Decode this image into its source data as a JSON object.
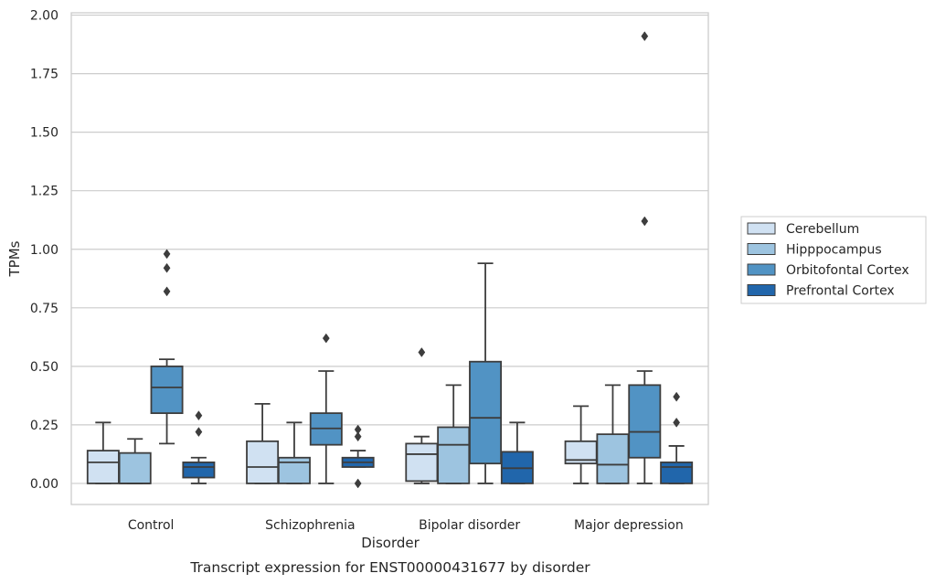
{
  "chart_data": {
    "type": "box",
    "xlabel": "Disorder",
    "ylabel": "TPMs",
    "caption": "Transcript expression for ENST00000431677 by disorder",
    "ylim": [
      -0.09,
      2.01
    ],
    "yticks": [
      "0.00",
      "0.25",
      "0.50",
      "0.75",
      "1.00",
      "1.25",
      "1.50",
      "1.75",
      "2.00"
    ],
    "grid": "horizontal",
    "legend_position": "right",
    "categories": [
      "Control",
      "Schizophrenia",
      "Bipolar disorder",
      "Major depression"
    ],
    "series": [
      {
        "name": "Cerebellum",
        "color": "#d0e1f2",
        "boxes": [
          {
            "whislo": 0.0,
            "q1": 0.0,
            "med": 0.09,
            "q3": 0.14,
            "whishi": 0.26,
            "fliers": []
          },
          {
            "whislo": 0.0,
            "q1": 0.0,
            "med": 0.07,
            "q3": 0.18,
            "whishi": 0.34,
            "fliers": []
          },
          {
            "whislo": 0.0,
            "q1": 0.01,
            "med": 0.125,
            "q3": 0.17,
            "whishi": 0.2,
            "fliers": [
              0.56
            ]
          },
          {
            "whislo": 0.0,
            "q1": 0.085,
            "med": 0.1,
            "q3": 0.18,
            "whishi": 0.33,
            "fliers": []
          }
        ]
      },
      {
        "name": "Hipppocampus",
        "color": "#9dc4e0",
        "boxes": [
          {
            "whislo": 0.0,
            "q1": 0.0,
            "med": 0.0,
            "q3": 0.13,
            "whishi": 0.19,
            "fliers": []
          },
          {
            "whislo": 0.0,
            "q1": 0.0,
            "med": 0.09,
            "q3": 0.11,
            "whishi": 0.26,
            "fliers": []
          },
          {
            "whislo": 0.0,
            "q1": 0.0,
            "med": 0.165,
            "q3": 0.24,
            "whishi": 0.42,
            "fliers": []
          },
          {
            "whislo": 0.0,
            "q1": 0.0,
            "med": 0.08,
            "q3": 0.21,
            "whishi": 0.42,
            "fliers": []
          }
        ]
      },
      {
        "name": "Orbitofontal Cortex",
        "color": "#5193c4",
        "boxes": [
          {
            "whislo": 0.17,
            "q1": 0.3,
            "med": 0.41,
            "q3": 0.5,
            "whishi": 0.53,
            "fliers": [
              0.82,
              0.92,
              0.98
            ]
          },
          {
            "whislo": 0.0,
            "q1": 0.165,
            "med": 0.235,
            "q3": 0.3,
            "whishi": 0.48,
            "fliers": [
              0.62
            ]
          },
          {
            "whislo": 0.0,
            "q1": 0.085,
            "med": 0.28,
            "q3": 0.52,
            "whishi": 0.94,
            "fliers": []
          },
          {
            "whislo": 0.0,
            "q1": 0.11,
            "med": 0.22,
            "q3": 0.42,
            "whishi": 0.48,
            "fliers": [
              1.12,
              1.91
            ]
          }
        ]
      },
      {
        "name": "Prefrontal Cortex",
        "color": "#2166ab",
        "boxes": [
          {
            "whislo": 0.0,
            "q1": 0.025,
            "med": 0.07,
            "q3": 0.09,
            "whishi": 0.11,
            "fliers": [
              0.22,
              0.29
            ]
          },
          {
            "whislo": 0.07,
            "q1": 0.07,
            "med": 0.09,
            "q3": 0.11,
            "whishi": 0.14,
            "fliers": [
              0.0,
              0.2,
              0.23
            ]
          },
          {
            "whislo": 0.0,
            "q1": 0.0,
            "med": 0.065,
            "q3": 0.135,
            "whishi": 0.26,
            "fliers": []
          },
          {
            "whislo": 0.0,
            "q1": 0.0,
            "med": 0.07,
            "q3": 0.09,
            "whishi": 0.16,
            "fliers": [
              0.26,
              0.37
            ]
          }
        ]
      }
    ]
  }
}
